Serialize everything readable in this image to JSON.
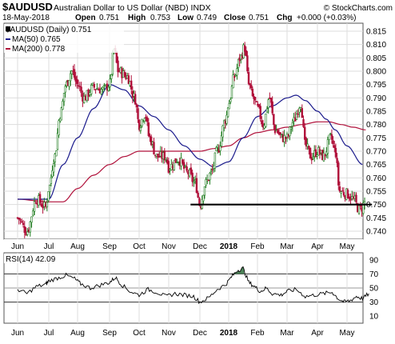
{
  "header": {
    "symbol": "$AUDUSD",
    "name": "Australian Dollar to US Dollar (NBD) INDX",
    "source": "© StockCharts.com",
    "date": "18-May-2018",
    "open_label": "Open",
    "open": "0.751",
    "high_label": "High",
    "high": "0.753",
    "low_label": "Low",
    "low": "0.749",
    "close_label": "Close",
    "close": "0.751",
    "chg_label": "Chg",
    "chg": "+0.000 (+0.03%)"
  },
  "legend": {
    "price": "$AUDUSD (Daily) 0.751",
    "ma50": "MA(50) 0.765",
    "ma200": "MA(200) 0.778"
  },
  "rsi_label": "RSI(14) 42.09",
  "colors": {
    "ma50": "#1a1a8c",
    "ma200": "#b0103a",
    "up_candle": "#1d7a1d",
    "down_candle": "#b0103a",
    "rsi_line": "#000000",
    "rsi_fill": "#2e6e3c"
  },
  "chart_data": [
    {
      "type": "candlestick",
      "title": "$AUDUSD (Daily) 0.751",
      "x_ticks": [
        "Jun",
        "Jul",
        "Aug",
        "Sep",
        "Oct",
        "Nov",
        "Dec",
        "2018",
        "Feb",
        "Mar",
        "Apr",
        "May"
      ],
      "y_ticks": [
        0.74,
        0.745,
        0.75,
        0.755,
        0.76,
        0.765,
        0.77,
        0.775,
        0.78,
        0.785,
        0.79,
        0.795,
        0.8,
        0.805,
        0.81,
        0.815
      ],
      "ylim": [
        0.737,
        0.818
      ],
      "grid": true,
      "legend_position": "top-left",
      "close_series": [
        [
          "Jun",
          0.745
        ],
        [
          0.3,
          0.74
        ],
        [
          0.6,
          0.752
        ],
        [
          0.9,
          0.749
        ],
        [
          "Jul",
          0.756
        ],
        [
          1.2,
          0.768
        ],
        [
          1.4,
          0.784
        ],
        [
          1.6,
          0.795
        ],
        [
          1.8,
          0.8
        ],
        [
          "Aug",
          0.795
        ],
        [
          2.2,
          0.79
        ],
        [
          2.5,
          0.794
        ],
        [
          2.8,
          0.793
        ],
        [
          "Sep",
          0.795
        ],
        [
          3.15,
          0.808
        ],
        [
          3.3,
          0.8
        ],
        [
          3.6,
          0.798
        ],
        [
          3.85,
          0.79
        ],
        [
          "Oct",
          0.78
        ],
        [
          4.2,
          0.784
        ],
        [
          4.35,
          0.775
        ],
        [
          4.6,
          0.768
        ],
        [
          4.9,
          0.768
        ],
        [
          "Nov",
          0.764
        ],
        [
          5.3,
          0.767
        ],
        [
          5.6,
          0.762
        ],
        [
          5.85,
          0.758
        ],
        [
          "Dec",
          0.75
        ],
        [
          6.2,
          0.758
        ],
        [
          6.4,
          0.762
        ],
        [
          6.6,
          0.77
        ],
        [
          6.9,
          0.782
        ],
        [
          "2018",
          0.788
        ],
        [
          7.2,
          0.798
        ],
        [
          7.4,
          0.805
        ],
        [
          7.55,
          0.809
        ],
        [
          7.7,
          0.795
        ],
        [
          7.85,
          0.79
        ],
        [
          "Feb",
          0.786
        ],
        [
          8.2,
          0.78
        ],
        [
          8.4,
          0.79
        ],
        [
          8.6,
          0.778
        ],
        [
          8.85,
          0.775
        ],
        [
          "Mar",
          0.775
        ],
        [
          9.2,
          0.781
        ],
        [
          9.45,
          0.788
        ],
        [
          9.6,
          0.772
        ],
        [
          9.8,
          0.768
        ],
        [
          "Apr",
          0.77
        ],
        [
          10.2,
          0.768
        ],
        [
          10.45,
          0.775
        ],
        [
          10.6,
          0.77
        ],
        [
          10.75,
          0.755
        ],
        [
          "May",
          0.754
        ],
        [
          11.2,
          0.752
        ],
        [
          11.4,
          0.748
        ],
        [
          11.6,
          0.751
        ]
      ],
      "series": [
        {
          "name": "MA(50) 0.765",
          "values": [
            [
              0,
              0.752
            ],
            [
              1,
              0.752
            ],
            [
              1.5,
              0.765
            ],
            [
              2,
              0.775
            ],
            [
              2.5,
              0.786
            ],
            [
              3,
              0.795
            ],
            [
              3.5,
              0.793
            ],
            [
              4,
              0.787
            ],
            [
              4.5,
              0.783
            ],
            [
              5,
              0.778
            ],
            [
              5.5,
              0.772
            ],
            [
              6,
              0.767
            ],
            [
              6.5,
              0.764
            ],
            [
              7,
              0.766
            ],
            [
              7.5,
              0.775
            ],
            [
              8,
              0.783
            ],
            [
              8.5,
              0.787
            ],
            [
              9,
              0.79
            ],
            [
              9.3,
              0.791
            ],
            [
              9.6,
              0.789
            ],
            [
              10,
              0.785
            ],
            [
              10.3,
              0.782
            ],
            [
              10.6,
              0.778
            ],
            [
              11,
              0.772
            ],
            [
              11.5,
              0.765
            ]
          ]
        },
        {
          "name": "MA(200) 0.778",
          "values": [
            [
              0,
              0.752
            ],
            [
              1,
              0.751
            ],
            [
              1.5,
              0.751
            ],
            [
              2,
              0.756
            ],
            [
              2.5,
              0.761
            ],
            [
              3,
              0.765
            ],
            [
              3.5,
              0.768
            ],
            [
              4,
              0.77
            ],
            [
              4.5,
              0.77
            ],
            [
              5,
              0.77
            ],
            [
              5.5,
              0.77
            ],
            [
              6,
              0.77
            ],
            [
              6.5,
              0.771
            ],
            [
              7,
              0.772
            ],
            [
              7.5,
              0.775
            ],
            [
              8,
              0.777
            ],
            [
              8.5,
              0.778
            ],
            [
              9,
              0.779
            ],
            [
              9.5,
              0.78
            ],
            [
              10,
              0.781
            ],
            [
              10.4,
              0.781
            ],
            [
              10.8,
              0.78
            ],
            [
              11.2,
              0.779
            ],
            [
              11.6,
              0.778
            ]
          ]
        }
      ],
      "annotations": [
        {
          "type": "horizontal_line",
          "y": 0.75,
          "x_start": 5.7,
          "x_end": 11.8
        }
      ]
    },
    {
      "type": "line",
      "title": "RSI(14) 42.09",
      "x_ticks": [
        "Jun",
        "Jul",
        "Aug",
        "Sep",
        "Oct",
        "Nov",
        "Dec",
        "2018",
        "Feb",
        "Mar",
        "Apr",
        "May"
      ],
      "y_ticks": [
        10,
        30,
        50,
        70,
        90
      ],
      "ylim": [
        0,
        100
      ],
      "reference_lines": [
        30,
        50,
        70
      ],
      "series": [
        {
          "name": "RSI(14) 42.09",
          "values": [
            [
              0,
              48
            ],
            [
              0.3,
              42
            ],
            [
              0.6,
              52
            ],
            [
              0.9,
              55
            ],
            [
              1.0,
              60
            ],
            [
              1.3,
              64
            ],
            [
              1.6,
              68
            ],
            [
              1.9,
              63
            ],
            [
              2.1,
              56
            ],
            [
              2.4,
              50
            ],
            [
              2.7,
              54
            ],
            [
              3.0,
              58
            ],
            [
              3.2,
              65
            ],
            [
              3.4,
              55
            ],
            [
              3.7,
              45
            ],
            [
              4.0,
              40
            ],
            [
              4.3,
              48
            ],
            [
              4.6,
              44
            ],
            [
              4.9,
              38
            ],
            [
              5.2,
              42
            ],
            [
              5.5,
              40
            ],
            [
              5.8,
              38
            ],
            [
              6.0,
              30
            ],
            [
              6.3,
              36
            ],
            [
              6.6,
              48
            ],
            [
              6.9,
              55
            ],
            [
              7.1,
              66
            ],
            [
              7.3,
              75
            ],
            [
              7.5,
              78
            ],
            [
              7.7,
              58
            ],
            [
              7.9,
              52
            ],
            [
              8.1,
              45
            ],
            [
              8.3,
              50
            ],
            [
              8.5,
              42
            ],
            [
              8.8,
              40
            ],
            [
              9.0,
              45
            ],
            [
              9.3,
              48
            ],
            [
              9.6,
              38
            ],
            [
              9.9,
              40
            ],
            [
              10.2,
              42
            ],
            [
              10.5,
              44
            ],
            [
              10.7,
              35
            ],
            [
              10.9,
              30
            ],
            [
              11.1,
              32
            ],
            [
              11.3,
              38
            ],
            [
              11.5,
              35
            ],
            [
              11.7,
              42
            ]
          ]
        }
      ]
    }
  ]
}
